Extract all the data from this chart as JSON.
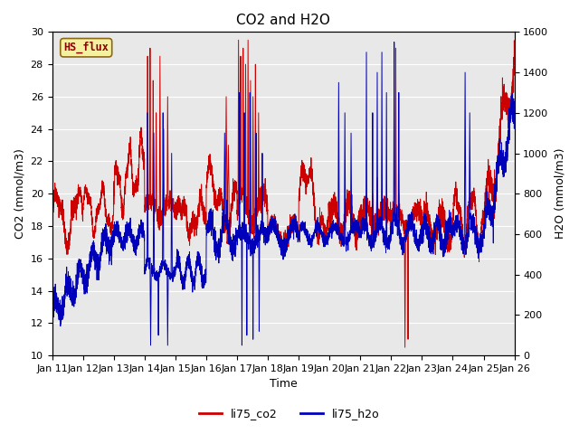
{
  "title": "CO2 and H2O",
  "xlabel": "Time",
  "ylabel_left": "CO2 (mmol/m3)",
  "ylabel_right": "H2O (mmol/m3)",
  "ylim_left": [
    10,
    30
  ],
  "ylim_right": [
    0,
    1600
  ],
  "yticks_left": [
    10,
    12,
    14,
    16,
    18,
    20,
    22,
    24,
    26,
    28,
    30
  ],
  "yticks_right": [
    0,
    200,
    400,
    600,
    800,
    1000,
    1200,
    1400,
    1600
  ],
  "xtick_labels": [
    "Jan 11",
    "Jan 12",
    "Jan 13",
    "Jan 14",
    "Jan 15",
    "Jan 16",
    "Jan 17",
    "Jan 18",
    "Jan 19",
    "Jan 20",
    "Jan 21",
    "Jan 22",
    "Jan 23",
    "Jan 24",
    "Jan 25",
    "Jan 26"
  ],
  "color_co2": "#cc0000",
  "color_h2o": "#0000bb",
  "legend_label_co2": "li75_co2",
  "legend_label_h2o": "li75_h2o",
  "dataset_label": "HS_flux",
  "background_color": "#e8e8e8",
  "title_fontsize": 11,
  "axis_fontsize": 9,
  "tick_fontsize": 8,
  "linewidth": 0.7
}
